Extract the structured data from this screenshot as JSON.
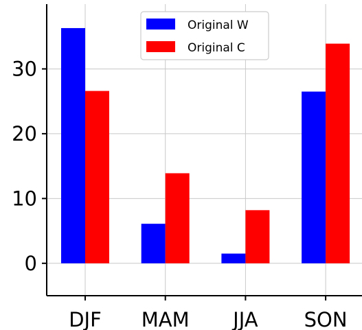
{
  "chart_data": {
    "type": "bar",
    "title": "",
    "xlabel": "",
    "ylabel": "",
    "categories": [
      "DJF",
      "MAM",
      "JJA",
      "SON"
    ],
    "series": [
      {
        "name": "Original W",
        "color": "#0000ff",
        "values": [
          36.3,
          6.1,
          1.5,
          26.5
        ]
      },
      {
        "name": "Original C",
        "color": "#ff0000",
        "values": [
          26.6,
          13.9,
          8.2,
          33.9
        ]
      }
    ],
    "ylim": [
      -5,
      40
    ],
    "yticks": [
      0,
      10,
      20,
      30
    ],
    "grid": true,
    "legend_position": "top-center"
  }
}
